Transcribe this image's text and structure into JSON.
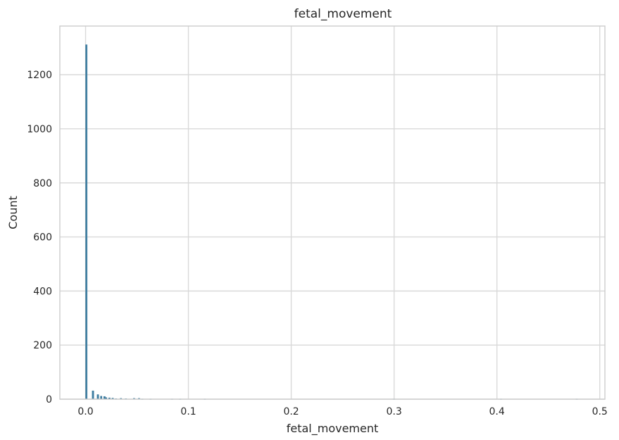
{
  "chart_data": {
    "type": "bar",
    "title": "fetal_movement",
    "xlabel": "fetal_movement",
    "ylabel": "Count",
    "xlim": [
      -0.025,
      0.505
    ],
    "ylim": [
      0,
      1380
    ],
    "x_ticks": [
      0.0,
      0.1,
      0.2,
      0.3,
      0.4,
      0.5
    ],
    "x_tick_labels": [
      "0.0",
      "0.1",
      "0.2",
      "0.3",
      "0.4",
      "0.5"
    ],
    "y_ticks": [
      0,
      200,
      400,
      600,
      800,
      1000,
      1200
    ],
    "y_tick_labels": [
      "0",
      "200",
      "400",
      "600",
      "800",
      "1000",
      "1200"
    ],
    "grid": true,
    "bin_width": 0.0016,
    "bins": [
      {
        "x": 0.0,
        "count": 1311
      },
      {
        "x": 0.0064,
        "count": 31
      },
      {
        "x": 0.0112,
        "count": 17
      },
      {
        "x": 0.0144,
        "count": 11
      },
      {
        "x": 0.0176,
        "count": 10
      },
      {
        "x": 0.0192,
        "count": 6
      },
      {
        "x": 0.0224,
        "count": 5
      },
      {
        "x": 0.0256,
        "count": 4
      },
      {
        "x": 0.0288,
        "count": 2
      },
      {
        "x": 0.0336,
        "count": 3
      },
      {
        "x": 0.0384,
        "count": 2
      },
      {
        "x": 0.0464,
        "count": 3
      },
      {
        "x": 0.0512,
        "count": 3
      },
      {
        "x": 0.0544,
        "count": 1
      },
      {
        "x": 0.0624,
        "count": 1
      },
      {
        "x": 0.0832,
        "count": 1
      },
      {
        "x": 0.0912,
        "count": 1
      },
      {
        "x": 0.1152,
        "count": 1
      },
      {
        "x": 0.2992,
        "count": 1
      },
      {
        "x": 0.4032,
        "count": 1
      },
      {
        "x": 0.4768,
        "count": 1
      }
    ]
  }
}
